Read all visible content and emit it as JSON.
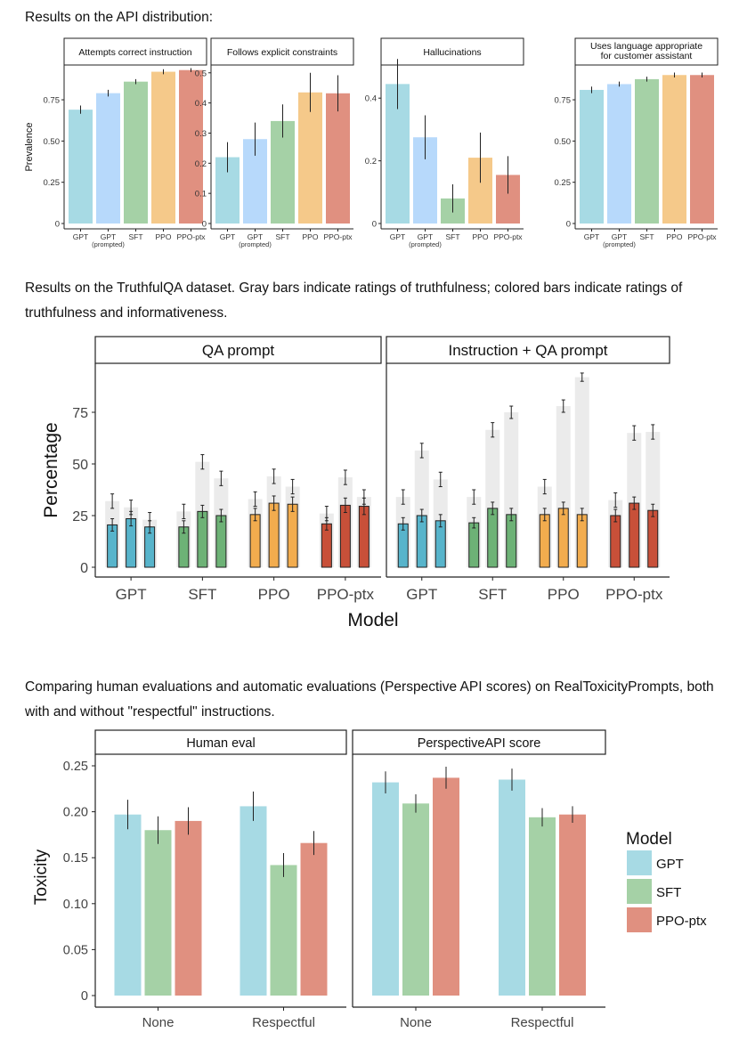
{
  "captions": {
    "api": "Results on the API distribution:",
    "truthfulqa": "Results on the TruthfulQA dataset. Gray bars indicate ratings of truthfulness; colored bars indicate ratings of truthfulness and informativeness.",
    "toxicity": "Comparing human evaluations and automatic evaluations (Perspective API scores) on RealToxicityPrompts, both with and without \"respectful\" instructions."
  },
  "colors": {
    "GPT": "#a7dae4",
    "GPT_prompted": "#b7d9fb",
    "SFT": "#a5d1a6",
    "PPO": "#f5c98a",
    "PPO_ptx": "#e09080",
    "GPT_dark": "#57b4cb",
    "SFT_dark": "#6db276",
    "PPO_dark": "#f2ac4e",
    "PPO_ptx_dark": "#c85039",
    "gray_bar": "#ebebeb"
  },
  "chart_data": [
    {
      "id": "api",
      "type": "bar",
      "ylabel": "Prevalence",
      "categories": [
        "GPT",
        "GPT (prompted)",
        "SFT",
        "PPO",
        "PPO-ptx"
      ],
      "category_labels": [
        [
          "GPT"
        ],
        [
          "GPT",
          "(prompted)"
        ],
        [
          "SFT"
        ],
        [
          "PPO"
        ],
        [
          "PPO-ptx"
        ]
      ],
      "panels": [
        {
          "title": [
            "Attempts correct instruction"
          ],
          "ylim": [
            0,
            0.95
          ],
          "ticks": [
            0,
            0.25,
            0.5,
            0.75
          ],
          "tick_labels": [
            "0",
            "0.25",
            "0.50",
            "0.75"
          ],
          "values": [
            0.69,
            0.79,
            0.86,
            0.92,
            0.93
          ],
          "err": [
            0.025,
            0.02,
            0.015,
            0.015,
            0.012
          ]
        },
        {
          "title": [
            "Follows explicit constraints"
          ],
          "ylim": [
            0,
            0.52
          ],
          "ticks": [
            0,
            0.1,
            0.2,
            0.3,
            0.4,
            0.5
          ],
          "tick_labels": [
            "0",
            "0.1",
            "0.2",
            "0.3",
            "0.4",
            "0.5"
          ],
          "values": [
            0.22,
            0.28,
            0.34,
            0.435,
            0.432
          ],
          "err": [
            0.05,
            0.055,
            0.055,
            0.065,
            0.06
          ]
        },
        {
          "title": [
            "Hallucinations"
          ],
          "ylim": [
            0,
            0.5
          ],
          "ticks": [
            0,
            0.2,
            0.4
          ],
          "tick_labels": [
            "0",
            "0.2",
            "0.4"
          ],
          "values": [
            0.445,
            0.275,
            0.08,
            0.21,
            0.155
          ],
          "err": [
            0.08,
            0.07,
            0.045,
            0.08,
            0.06
          ]
        },
        {
          "title": [
            "Uses language appropriate",
            "for customer assistant"
          ],
          "ylim": [
            0,
            0.95
          ],
          "ticks": [
            0,
            0.25,
            0.5,
            0.75
          ],
          "tick_labels": [
            "0",
            "0.25",
            "0.50",
            "0.75"
          ],
          "values": [
            0.81,
            0.845,
            0.875,
            0.9,
            0.9
          ],
          "err": [
            0.02,
            0.015,
            0.015,
            0.015,
            0.015
          ]
        }
      ]
    },
    {
      "id": "truthfulqa",
      "type": "bar",
      "xlabel": "Model",
      "ylabel": "Percentage",
      "ylim": [
        -7,
        100
      ],
      "ticks": [
        0,
        25,
        50,
        75
      ],
      "tick_labels": [
        "0",
        "25",
        "50",
        "75"
      ],
      "categories": [
        "GPT",
        "SFT",
        "PPO",
        "PPO-ptx"
      ],
      "panels": [
        {
          "title": "QA prompt",
          "groups": [
            {
              "model": "GPT",
              "truthful": [
                32,
                29,
                23
              ],
              "truthful_informative": [
                20.5,
                23.5,
                19.5
              ],
              "err_gray": [
                3.5,
                3.5,
                3.5
              ],
              "err_color": [
                3,
                3.5,
                3
              ]
            },
            {
              "model": "SFT",
              "truthful": [
                27,
                51,
                43
              ],
              "truthful_informative": [
                19.5,
                27,
                25
              ],
              "err_gray": [
                3.5,
                3.5,
                3.5
              ],
              "err_color": [
                3,
                3,
                3
              ]
            },
            {
              "model": "PPO",
              "truthful": [
                33,
                44,
                39
              ],
              "truthful_informative": [
                25.5,
                31,
                30.5
              ],
              "err_gray": [
                3.5,
                3.5,
                3.5
              ],
              "err_color": [
                3,
                3.5,
                3.5
              ]
            },
            {
              "model": "PPO-ptx",
              "truthful": [
                26,
                43.5,
                34
              ],
              "truthful_informative": [
                21,
                30,
                29.5
              ],
              "err_gray": [
                3.5,
                3.5,
                3.5
              ],
              "err_color": [
                3,
                3.5,
                4
              ]
            }
          ]
        },
        {
          "title": "Instruction + QA prompt",
          "groups": [
            {
              "model": "GPT",
              "truthful": [
                34,
                56.5,
                42.5
              ],
              "truthful_informative": [
                21,
                25,
                22.5
              ],
              "err_gray": [
                3.5,
                3.5,
                3.5
              ],
              "err_color": [
                3,
                3,
                3
              ]
            },
            {
              "model": "SFT",
              "truthful": [
                34,
                66.5,
                75
              ],
              "truthful_informative": [
                21.5,
                28.5,
                25.5
              ],
              "err_gray": [
                3.5,
                3.5,
                3
              ],
              "err_color": [
                2.5,
                3,
                3
              ]
            },
            {
              "model": "PPO",
              "truthful": [
                39,
                78,
                92
              ],
              "truthful_informative": [
                25.5,
                28.5,
                25.5
              ],
              "err_gray": [
                3.5,
                3,
                2
              ],
              "err_color": [
                3,
                3,
                3
              ]
            },
            {
              "model": "PPO-ptx",
              "truthful": [
                32.5,
                65,
                65.5
              ],
              "truthful_informative": [
                25,
                31,
                27.5
              ],
              "err_gray": [
                3.5,
                3.5,
                3.5
              ],
              "err_color": [
                3,
                3,
                3
              ]
            }
          ]
        }
      ]
    },
    {
      "id": "toxicity",
      "type": "bar",
      "ylabel": "Toxicity",
      "ylim": [
        0,
        0.265
      ],
      "ticks": [
        0,
        0.05,
        0.1,
        0.15,
        0.2,
        0.25
      ],
      "tick_labels": [
        "0",
        "0.05",
        "0.10",
        "0.15",
        "0.20",
        "0.25"
      ],
      "categories": [
        "None",
        "Respectful"
      ],
      "legend": {
        "title": "Model",
        "entries": [
          "GPT",
          "SFT",
          "PPO-ptx"
        ],
        "position": "right"
      },
      "panels": [
        {
          "title": "Human eval",
          "series": [
            {
              "name": "GPT",
              "values": [
                0.197,
                0.206
              ],
              "err": [
                0.016,
                0.016
              ]
            },
            {
              "name": "SFT",
              "values": [
                0.18,
                0.142
              ],
              "err": [
                0.015,
                0.013
              ]
            },
            {
              "name": "PPO-ptx",
              "values": [
                0.19,
                0.166
              ],
              "err": [
                0.015,
                0.013
              ]
            }
          ]
        },
        {
          "title": "PerspectiveAPI score",
          "series": [
            {
              "name": "GPT",
              "values": [
                0.232,
                0.235
              ],
              "err": [
                0.012,
                0.012
              ]
            },
            {
              "name": "SFT",
              "values": [
                0.209,
                0.194
              ],
              "err": [
                0.01,
                0.01
              ]
            },
            {
              "name": "PPO-ptx",
              "values": [
                0.237,
                0.197
              ],
              "err": [
                0.012,
                0.009
              ]
            }
          ]
        }
      ]
    }
  ]
}
